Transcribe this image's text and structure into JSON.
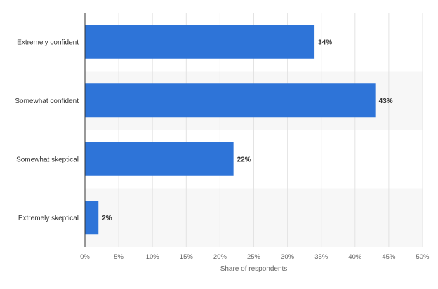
{
  "chart_data": {
    "type": "bar",
    "orientation": "horizontal",
    "categories": [
      "Extremely confident",
      "Somewhat confident",
      "Somewhat skeptical",
      "Extremely skeptical"
    ],
    "values": [
      34,
      43,
      22,
      2
    ],
    "value_labels": [
      "34%",
      "43%",
      "22%",
      "2%"
    ],
    "xlabel": "Share of respondents",
    "xlim": [
      0,
      50
    ],
    "xticks": [
      0,
      5,
      10,
      15,
      20,
      25,
      30,
      35,
      40,
      45,
      50
    ],
    "xtick_labels": [
      "0%",
      "5%",
      "10%",
      "15%",
      "20%",
      "25%",
      "30%",
      "35%",
      "40%",
      "45%",
      "50%"
    ],
    "grid": true,
    "legend": "none",
    "colors": {
      "bar": "#2e74d8",
      "grid": "#e3e3e3",
      "band": "#f7f7f7",
      "axis": "#333333"
    }
  }
}
